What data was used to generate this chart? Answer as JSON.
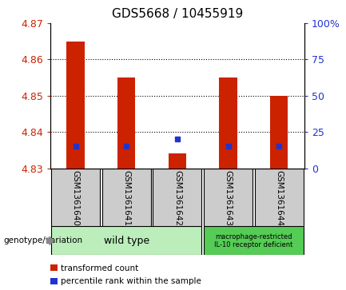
{
  "title": "GDS5668 / 10455919",
  "samples": [
    "GSM1361640",
    "GSM1361641",
    "GSM1361642",
    "GSM1361643",
    "GSM1361644"
  ],
  "bar_bottom": 4.83,
  "bar_tops": [
    4.865,
    4.855,
    4.834,
    4.855,
    4.85
  ],
  "blue_y": [
    4.836,
    4.836,
    4.838,
    4.836,
    4.836
  ],
  "ylim": [
    4.83,
    4.87
  ],
  "yticks_left": [
    4.83,
    4.84,
    4.85,
    4.86,
    4.87
  ],
  "yticks_right": [
    0,
    25,
    50,
    75,
    100
  ],
  "y_right_labels": [
    "0",
    "25",
    "50",
    "75",
    "100%"
  ],
  "bar_color": "#cc2200",
  "blue_color": "#2233cc",
  "bg_color": "#ffffff",
  "plot_bg": "#ffffff",
  "sample_box_color": "#cccccc",
  "wild_type_color": "#bbeebb",
  "macro_color": "#55cc55",
  "genotype_label": "genotype/variation",
  "wild_type_label": "wild type",
  "macro_label": "macrophage-restricted\nIL-10 receptor deficient",
  "legend_red": "transformed count",
  "legend_blue": "percentile rank within the sample",
  "n_wild_type": 3,
  "n_macro": 2
}
